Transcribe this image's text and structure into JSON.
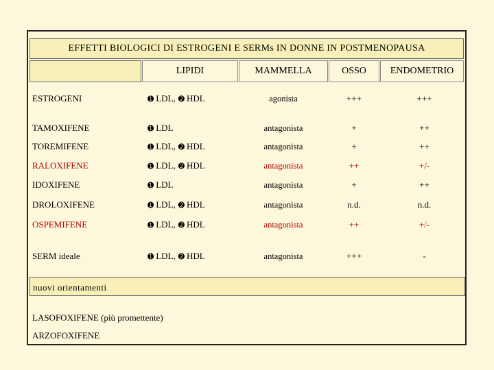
{
  "title": "EFFETTI BIOLOGICI DI ESTROGENI E SERMs IN DONNE IN POSTMENOPAUSA",
  "columns": {
    "lipidi": "LIPIDI",
    "mammella": "MAMMELLA",
    "osso": "OSSO",
    "endometrio": "ENDOMETRIO"
  },
  "bullets": {
    "down": "➊",
    "up": "➋"
  },
  "rows": [
    {
      "name": "ESTROGENI",
      "ldl": "LDL",
      "sep": ",",
      "hdl": "HDL",
      "mammella": "agonista",
      "osso": "+++",
      "endometrio": "+++"
    },
    {
      "name": "TAMOXIFENE",
      "ldl": "LDL",
      "sep": "",
      "hdl": "",
      "mammella": "antagonista",
      "osso": "+",
      "endometrio": "++"
    },
    {
      "name": "TOREMIFENE",
      "ldl": "LDL",
      "sep": ",",
      "hdl": "HDL",
      "mammella": "antagonista",
      "osso": "+",
      "endometrio": "++"
    },
    {
      "name": "RALOXIFENE",
      "ldl": "LDL",
      "sep": ",",
      "hdl": "HDL",
      "mammella": "antagonista",
      "osso": "++",
      "endometrio": "+/-",
      "highlight": "#b30000"
    },
    {
      "name": "IDOXIFENE",
      "ldl": "LDL",
      "sep": "",
      "hdl": "",
      "mammella": "antagonista",
      "osso": "+",
      "endometrio": "++"
    },
    {
      "name": "DROLOXIFENE",
      "ldl": "LDL",
      "sep": ",",
      "hdl": "HDL",
      "mammella": "antagonista",
      "osso": "n.d.",
      "endometrio": "n.d."
    },
    {
      "name": "OSPEMIFENE",
      "ldl": "LDL",
      "sep": ",",
      "hdl": "HDL",
      "mammella": "antagonista",
      "osso": "++",
      "endometrio": "+/-",
      "highlight": "#b30000"
    },
    {
      "name": "SERM ideale",
      "ldl": "LDL",
      "sep": ",",
      "hdl": "HDL",
      "mammella": "antagonista",
      "osso": "+++",
      "endometrio": "-"
    }
  ],
  "nuovi": {
    "heading": "nuovi orientamenti",
    "laso_name": "LASOFOXIFENE",
    "laso_note": "(più promettente)",
    "arzo": "ARZOFOXIFENE"
  }
}
